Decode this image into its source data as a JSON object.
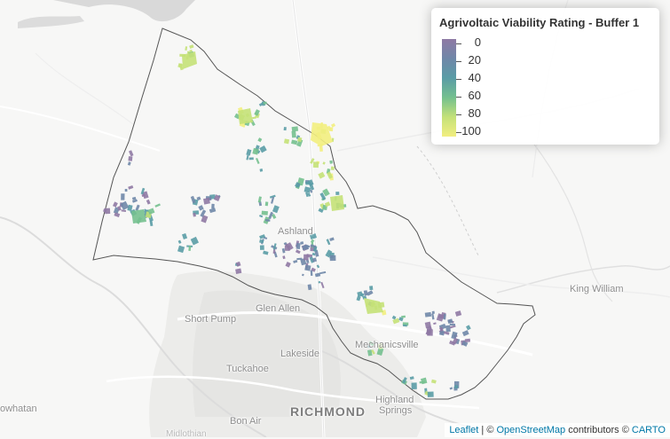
{
  "legend": {
    "title": "Agrivoltaic Viability Rating - Buffer 1",
    "ticks": [
      "0",
      "20",
      "40",
      "60",
      "80",
      "100"
    ],
    "colors": {
      "v0": "#8f79a4",
      "v20": "#6f87a8",
      "v40": "#5a9ca6",
      "v60": "#74c08f",
      "v80": "#c4e178",
      "v100": "#f2ee80"
    }
  },
  "places": {
    "ashland": "Ashland",
    "glen_allen": "Glen Allen",
    "short_pump": "Short Pump",
    "lakeside": "Lakeside",
    "tuckahoe": "Tuckahoe",
    "mechanicsville": "Mechanicsville",
    "richmond": "RICHMOND",
    "highland": "Highland",
    "springs": "Springs",
    "bon_air": "Bon Air",
    "king_william": "King William",
    "owhatan": "owhatan",
    "midlothian": "Midlothian"
  },
  "attribution": {
    "leaflet": "Leaflet",
    "sep": " | © ",
    "osm": "OpenStreetMap",
    "contrib": " contributors © ",
    "carto": "CARTO"
  }
}
